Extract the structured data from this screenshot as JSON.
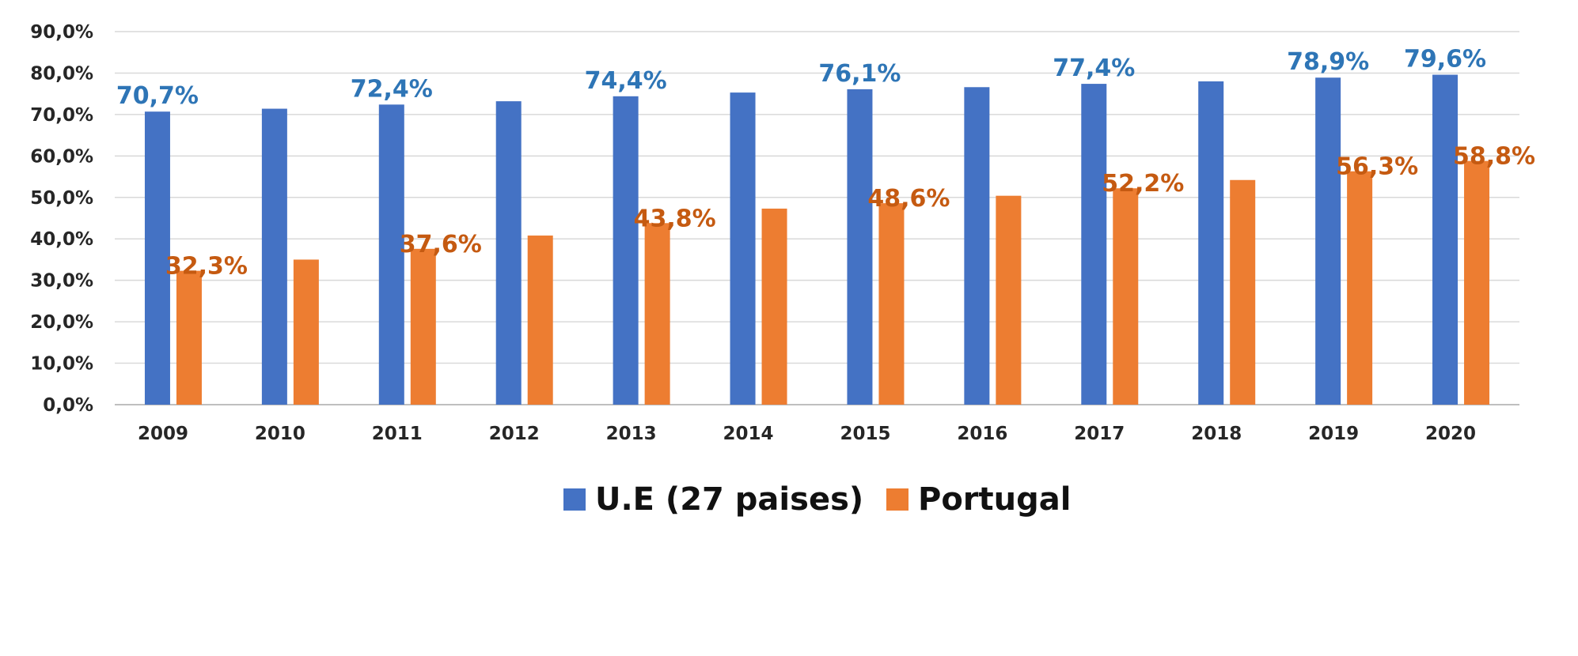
{
  "chart_data": {
    "type": "bar",
    "title": "",
    "xlabel": "",
    "ylabel": "",
    "categories": [
      "2009",
      "2010",
      "2011",
      "2012",
      "2013",
      "2014",
      "2015",
      "2016",
      "2017",
      "2018",
      "2019",
      "2020"
    ],
    "ylim": [
      0,
      90
    ],
    "ytick_labels": [
      "0,0%",
      "10,0%",
      "20,0%",
      "30,0%",
      "40,0%",
      "50,0%",
      "60,0%",
      "70,0%",
      "80,0%",
      "90,0%"
    ],
    "grid": true,
    "legend_placement": "bottom",
    "series": [
      {
        "name": "U.E (27 paises)",
        "color": "#4472C4",
        "label_color": "#2E75B6",
        "values": [
          70.7,
          71.4,
          72.4,
          73.2,
          74.4,
          75.3,
          76.1,
          76.6,
          77.4,
          78.0,
          78.9,
          79.6
        ],
        "data_labels": [
          "70,7%",
          "",
          "72,4%",
          "",
          "74,4%",
          "",
          "76,1%",
          "",
          "77,4%",
          "",
          "78,9%",
          "79,6%"
        ]
      },
      {
        "name": "Portugal",
        "color": "#ED7D31",
        "label_color": "#C55A11",
        "values": [
          32.3,
          35.0,
          37.6,
          40.8,
          43.8,
          47.3,
          48.6,
          50.4,
          52.2,
          54.2,
          56.3,
          58.8
        ],
        "data_labels": [
          "32,3%",
          "",
          "37,6%",
          "",
          "43,8%",
          "",
          "48,6%",
          "",
          "52,2%",
          "",
          "56,3%",
          "58,8%"
        ]
      }
    ]
  }
}
